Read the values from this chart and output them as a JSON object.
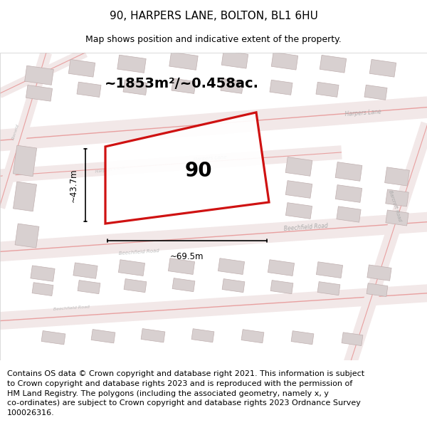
{
  "title": "90, HARPERS LANE, BOLTON, BL1 6HU",
  "subtitle": "Map shows position and indicative extent of the property.",
  "footer": "Contains OS data © Crown copyright and database right 2021. This information is subject\nto Crown copyright and database rights 2023 and is reproduced with the permission of\nHM Land Registry. The polygons (including the associated geometry, namely x, y\nco-ordinates) are subject to Crown copyright and database rights 2023 Ordnance Survey\n100026316.",
  "area_label": "~1853m²/~0.458ac.",
  "property_number": "90",
  "width_label": "~69.5m",
  "height_label": "~43.7m",
  "map_bg": "#f7f2f2",
  "road_fill": "#f2e8e8",
  "road_line": "#e8a0a0",
  "building_fill": "#d8d0d0",
  "building_edge": "#c0b0b0",
  "property_outline_color": "#cc0000",
  "dim_line_color": "#111111",
  "title_fontsize": 11,
  "subtitle_fontsize": 9,
  "footer_fontsize": 8
}
